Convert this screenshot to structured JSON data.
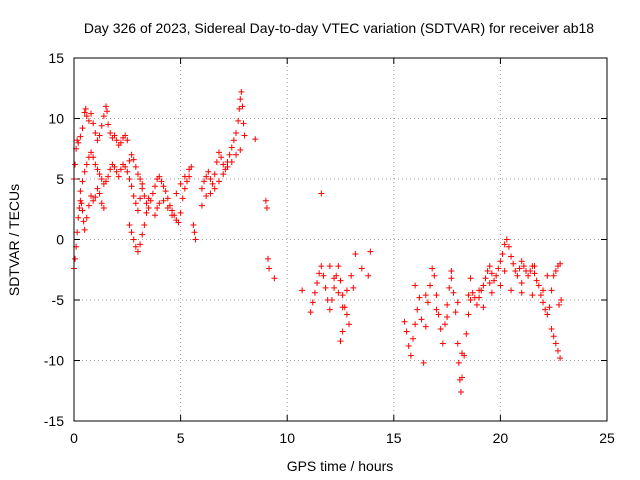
{
  "chart_data": {
    "type": "scatter",
    "title": "Day 326 of 2023, Sidereal Day-to-day VTEC variation (SDTVAR) for receiver ab18",
    "xlabel": "GPS time / hours",
    "ylabel": "SDTVAR / TECUs",
    "xlim": [
      0,
      25
    ],
    "ylim": [
      -15,
      15
    ],
    "xticks": [
      0,
      5,
      10,
      15,
      20,
      25
    ],
    "yticks": [
      -15,
      -10,
      -5,
      0,
      5,
      10,
      15
    ],
    "xtick_labels": [
      "0",
      "5",
      "10",
      "15",
      "20",
      "25"
    ],
    "ytick_labels": [
      "-15",
      "-10",
      "-5",
      "0",
      "5",
      "10",
      "15"
    ],
    "grid": true,
    "marker": "+",
    "color": "#ff0000",
    "series": [
      {
        "name": "SDTVAR",
        "points": [
          [
            0.0,
            -2.4
          ],
          [
            0.05,
            -1.6
          ],
          [
            0.1,
            -0.6
          ],
          [
            0.15,
            0.6
          ],
          [
            0.2,
            1.8
          ],
          [
            0.25,
            2.6
          ],
          [
            0.3,
            3.2
          ],
          [
            0.35,
            3.0
          ],
          [
            0.4,
            2.4
          ],
          [
            0.45,
            1.5
          ],
          [
            0.5,
            0.8
          ],
          [
            0.6,
            1.8
          ],
          [
            0.7,
            2.8
          ],
          [
            0.8,
            3.6
          ],
          [
            0.9,
            3.2
          ],
          [
            1.0,
            3.5
          ],
          [
            1.1,
            4.2
          ],
          [
            1.2,
            3.8
          ],
          [
            1.3,
            3.0
          ],
          [
            1.4,
            2.6
          ],
          [
            0.0,
            5.0
          ],
          [
            0.05,
            6.2
          ],
          [
            0.1,
            7.5
          ],
          [
            0.15,
            8.2
          ],
          [
            0.2,
            8.0
          ],
          [
            0.3,
            8.5
          ],
          [
            0.4,
            9.2
          ],
          [
            0.5,
            10.5
          ],
          [
            0.55,
            10.8
          ],
          [
            0.6,
            10.2
          ],
          [
            0.7,
            9.8
          ],
          [
            0.8,
            10.4
          ],
          [
            0.9,
            9.6
          ],
          [
            1.0,
            8.8
          ],
          [
            1.1,
            8.2
          ],
          [
            1.2,
            8.6
          ],
          [
            1.3,
            9.4
          ],
          [
            1.4,
            10.2
          ],
          [
            1.5,
            11.0
          ],
          [
            1.55,
            10.6
          ],
          [
            1.6,
            9.5
          ],
          [
            1.7,
            8.8
          ],
          [
            1.8,
            8.4
          ],
          [
            1.9,
            8.6
          ],
          [
            2.0,
            8.2
          ],
          [
            2.1,
            7.8
          ],
          [
            2.2,
            8.0
          ],
          [
            2.3,
            8.4
          ],
          [
            2.4,
            8.6
          ],
          [
            2.5,
            8.2
          ],
          [
            0.3,
            4.0
          ],
          [
            0.4,
            4.8
          ],
          [
            0.5,
            5.6
          ],
          [
            0.6,
            6.2
          ],
          [
            0.7,
            6.8
          ],
          [
            0.8,
            7.2
          ],
          [
            0.9,
            6.8
          ],
          [
            1.0,
            6.2
          ],
          [
            1.1,
            5.8
          ],
          [
            1.2,
            5.4
          ],
          [
            1.3,
            5.0
          ],
          [
            1.4,
            4.6
          ],
          [
            1.5,
            4.8
          ],
          [
            1.6,
            5.2
          ],
          [
            1.7,
            5.8
          ],
          [
            1.8,
            6.2
          ],
          [
            1.9,
            6.0
          ],
          [
            2.0,
            5.6
          ],
          [
            2.1,
            5.2
          ],
          [
            2.2,
            5.8
          ],
          [
            2.3,
            6.2
          ],
          [
            2.4,
            6.0
          ],
          [
            2.5,
            5.6
          ],
          [
            2.6,
            5.0
          ],
          [
            2.7,
            4.4
          ],
          [
            2.8,
            3.6
          ],
          [
            2.9,
            3.0
          ],
          [
            3.0,
            2.4
          ],
          [
            3.1,
            3.4
          ],
          [
            3.2,
            4.6
          ],
          [
            2.6,
            1.2
          ],
          [
            2.7,
            0.6
          ],
          [
            2.8,
            0.0
          ],
          [
            2.9,
            -0.6
          ],
          [
            3.0,
            -1.0
          ],
          [
            3.1,
            -0.4
          ],
          [
            3.2,
            0.4
          ],
          [
            3.3,
            1.2
          ],
          [
            3.4,
            2.2
          ],
          [
            3.5,
            3.4
          ],
          [
            2.6,
            6.5
          ],
          [
            2.7,
            7.0
          ],
          [
            2.8,
            6.6
          ],
          [
            2.9,
            6.0
          ],
          [
            3.0,
            5.4
          ],
          [
            3.1,
            5.0
          ],
          [
            3.2,
            4.2
          ],
          [
            3.3,
            3.6
          ],
          [
            3.4,
            3.0
          ],
          [
            3.5,
            2.6
          ],
          [
            3.6,
            3.2
          ],
          [
            3.7,
            3.8
          ],
          [
            3.8,
            4.4
          ],
          [
            3.9,
            5.0
          ],
          [
            4.0,
            5.2
          ],
          [
            4.1,
            4.8
          ],
          [
            4.2,
            4.4
          ],
          [
            4.3,
            4.0
          ],
          [
            4.4,
            3.4
          ],
          [
            4.5,
            2.8
          ],
          [
            4.6,
            2.4
          ],
          [
            4.7,
            2.0
          ],
          [
            4.8,
            1.6
          ],
          [
            4.9,
            1.4
          ],
          [
            5.0,
            2.2
          ],
          [
            5.1,
            3.4
          ],
          [
            5.2,
            4.2
          ],
          [
            5.3,
            4.8
          ],
          [
            5.4,
            5.2
          ],
          [
            5.5,
            6.0
          ],
          [
            3.8,
            2.0
          ],
          [
            3.9,
            2.6
          ],
          [
            4.0,
            3.0
          ],
          [
            4.2,
            3.2
          ],
          [
            4.4,
            2.6
          ],
          [
            4.6,
            2.0
          ],
          [
            4.8,
            3.8
          ],
          [
            5.0,
            4.6
          ],
          [
            5.2,
            5.2
          ],
          [
            5.4,
            5.8
          ],
          [
            5.6,
            1.2
          ],
          [
            5.65,
            0.6
          ],
          [
            5.7,
            0.0
          ],
          [
            6.0,
            4.2
          ],
          [
            6.1,
            4.8
          ],
          [
            6.2,
            5.2
          ],
          [
            6.3,
            5.6
          ],
          [
            6.4,
            5.0
          ],
          [
            6.5,
            4.6
          ],
          [
            6.6,
            5.4
          ],
          [
            6.7,
            6.4
          ],
          [
            6.8,
            7.2
          ],
          [
            6.9,
            6.8
          ],
          [
            7.0,
            6.2
          ],
          [
            7.1,
            5.8
          ],
          [
            7.2,
            6.4
          ],
          [
            7.3,
            7.0
          ],
          [
            7.4,
            7.6
          ],
          [
            7.5,
            8.2
          ],
          [
            7.6,
            8.8
          ],
          [
            7.7,
            9.8
          ],
          [
            7.75,
            10.8
          ],
          [
            7.8,
            11.6
          ],
          [
            7.85,
            12.2
          ],
          [
            7.9,
            11.0
          ],
          [
            7.95,
            9.6
          ],
          [
            8.0,
            8.6
          ],
          [
            6.0,
            2.8
          ],
          [
            6.2,
            3.6
          ],
          [
            6.4,
            3.8
          ],
          [
            6.6,
            4.2
          ],
          [
            6.8,
            4.8
          ],
          [
            7.0,
            5.4
          ],
          [
            7.2,
            6.0
          ],
          [
            7.4,
            6.4
          ],
          [
            7.6,
            7.0
          ],
          [
            7.8,
            7.4
          ],
          [
            8.5,
            8.3
          ],
          [
            9.0,
            3.2
          ],
          [
            9.05,
            2.6
          ],
          [
            9.1,
            -1.6
          ],
          [
            9.15,
            -2.4
          ],
          [
            9.4,
            -3.2
          ],
          [
            10.7,
            -4.2
          ],
          [
            11.1,
            -6.0
          ],
          [
            11.2,
            -5.2
          ],
          [
            11.3,
            -4.4
          ],
          [
            11.4,
            -3.6
          ],
          [
            11.5,
            -2.8
          ],
          [
            11.6,
            -2.2
          ],
          [
            11.7,
            -3.0
          ],
          [
            11.8,
            -4.0
          ],
          [
            11.9,
            -5.0
          ],
          [
            12.0,
            -5.8
          ],
          [
            12.1,
            -5.0
          ],
          [
            12.2,
            -4.0
          ],
          [
            12.3,
            -3.0
          ],
          [
            12.4,
            -2.2
          ],
          [
            12.5,
            -3.4
          ],
          [
            12.6,
            -4.6
          ],
          [
            12.7,
            -5.6
          ],
          [
            12.8,
            -6.2
          ],
          [
            12.9,
            -7.0
          ],
          [
            11.6,
            3.8
          ],
          [
            12.0,
            -2.2
          ],
          [
            12.2,
            -3.2
          ],
          [
            12.4,
            -4.4
          ],
          [
            12.6,
            -5.6
          ],
          [
            12.8,
            -4.2
          ],
          [
            13.0,
            -3.0
          ],
          [
            13.1,
            -4.0
          ],
          [
            13.2,
            -1.2
          ],
          [
            13.5,
            -2.4
          ],
          [
            13.8,
            -3.0
          ],
          [
            13.9,
            -1.0
          ],
          [
            12.6,
            -7.6
          ],
          [
            12.5,
            -8.4
          ],
          [
            15.5,
            -6.8
          ],
          [
            15.6,
            -7.6
          ],
          [
            15.7,
            -8.8
          ],
          [
            15.8,
            -9.6
          ],
          [
            15.9,
            -8.2
          ],
          [
            16.0,
            -7.0
          ],
          [
            16.1,
            -5.8
          ],
          [
            16.2,
            -4.8
          ],
          [
            16.3,
            -6.6
          ],
          [
            16.4,
            -10.2
          ],
          [
            16.5,
            -7.2
          ],
          [
            16.6,
            -5.2
          ],
          [
            16.7,
            -3.8
          ],
          [
            16.8,
            -2.4
          ],
          [
            16.9,
            -3.0
          ],
          [
            17.0,
            -4.6
          ],
          [
            17.1,
            -6.2
          ],
          [
            17.2,
            -7.4
          ],
          [
            17.3,
            -8.6
          ],
          [
            17.4,
            -7.0
          ],
          [
            17.5,
            -5.4
          ],
          [
            17.6,
            -4.0
          ],
          [
            17.7,
            -3.2
          ],
          [
            17.8,
            -4.4
          ],
          [
            17.9,
            -6.0
          ],
          [
            18.0,
            -8.6
          ],
          [
            18.05,
            -10.2
          ],
          [
            18.1,
            -11.6
          ],
          [
            18.15,
            -12.6
          ],
          [
            18.2,
            -11.4
          ],
          [
            18.3,
            -9.6
          ],
          [
            18.4,
            -7.8
          ],
          [
            18.5,
            -6.2
          ],
          [
            18.6,
            -5.0
          ],
          [
            18.7,
            -4.4
          ],
          [
            18.8,
            -4.8
          ],
          [
            18.9,
            -5.4
          ],
          [
            19.0,
            -4.8
          ],
          [
            19.1,
            -4.2
          ],
          [
            19.2,
            -3.8
          ],
          [
            19.3,
            -3.2
          ],
          [
            19.4,
            -2.6
          ],
          [
            19.5,
            -2.2
          ],
          [
            19.6,
            -2.8
          ],
          [
            19.7,
            -3.4
          ],
          [
            19.8,
            -3.0
          ],
          [
            19.9,
            -2.4
          ],
          [
            20.0,
            -1.8
          ],
          [
            20.1,
            -1.2
          ],
          [
            20.2,
            -0.4
          ],
          [
            20.3,
            0.0
          ],
          [
            20.4,
            -0.6
          ],
          [
            20.5,
            -1.4
          ],
          [
            20.6,
            -2.0
          ],
          [
            20.7,
            -2.6
          ],
          [
            20.8,
            -3.0
          ],
          [
            20.9,
            -2.4
          ],
          [
            21.0,
            -1.8
          ],
          [
            21.1,
            -2.2
          ],
          [
            21.2,
            -2.6
          ],
          [
            21.3,
            -3.0
          ],
          [
            21.4,
            -2.6
          ],
          [
            21.5,
            -2.2
          ],
          [
            21.6,
            -2.8
          ],
          [
            21.7,
            -3.4
          ],
          [
            21.8,
            -3.8
          ],
          [
            21.9,
            -4.6
          ],
          [
            22.0,
            -5.2
          ],
          [
            22.1,
            -5.8
          ],
          [
            22.2,
            -6.2
          ],
          [
            22.3,
            -5.6
          ],
          [
            22.4,
            -4.2
          ],
          [
            22.5,
            -3.0
          ],
          [
            22.6,
            -2.6
          ],
          [
            22.7,
            -2.2
          ],
          [
            22.8,
            -2.0
          ],
          [
            16.0,
            -3.8
          ],
          [
            16.5,
            -4.6
          ],
          [
            17.0,
            -5.8
          ],
          [
            17.5,
            -6.4
          ],
          [
            18.0,
            -5.2
          ],
          [
            18.5,
            -4.6
          ],
          [
            19.0,
            -4.2
          ],
          [
            19.5,
            -3.6
          ],
          [
            20.0,
            -3.8
          ],
          [
            20.5,
            -4.2
          ],
          [
            21.0,
            -4.4
          ],
          [
            21.5,
            -4.6
          ],
          [
            22.0,
            -4.2
          ],
          [
            22.2,
            -3.0
          ],
          [
            22.4,
            -7.4
          ],
          [
            22.5,
            -8.0
          ],
          [
            22.6,
            -8.6
          ],
          [
            22.7,
            -9.2
          ],
          [
            22.8,
            -9.8
          ],
          [
            22.75,
            -5.4
          ],
          [
            22.85,
            -5.0
          ],
          [
            17.7,
            -2.6
          ],
          [
            18.2,
            -9.4
          ],
          [
            18.6,
            -3.2
          ],
          [
            19.2,
            -5.6
          ],
          [
            19.6,
            -4.4
          ],
          [
            20.2,
            -2.6
          ],
          [
            21.0,
            -3.6
          ],
          [
            21.6,
            -2.2
          ]
        ]
      }
    ]
  }
}
